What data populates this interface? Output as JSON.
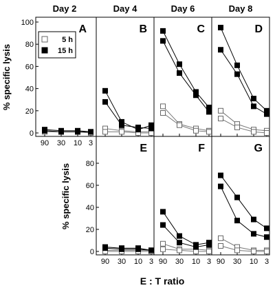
{
  "chart_data": {
    "type": "line",
    "panel_layout": "grid",
    "column_titles": [
      "Day 2",
      "Day 4",
      "Day 6",
      "Day 8"
    ],
    "x_tick_labels": [
      "90",
      "30",
      "10",
      "3"
    ],
    "xlabel": "E : T ratio",
    "ylabel": "% specific lysis",
    "ylim": [
      0,
      100
    ],
    "ylim_bottom_row": [
      0,
      100
    ],
    "y_ticks": [
      0,
      20,
      40,
      60,
      80,
      100
    ],
    "y_ticks_bottom_row": [
      0,
      20,
      40,
      60,
      80
    ],
    "legend": {
      "placement": "top-left of panel A",
      "entries": [
        {
          "label": "5 h",
          "marker": "open-square"
        },
        {
          "label": "15 h",
          "marker": "filled-square"
        }
      ]
    },
    "panels": [
      {
        "letter": "A",
        "day": "Day 2",
        "row": 1,
        "col": 1,
        "series": [
          {
            "name": "5 h",
            "marker": "open-square",
            "curves": [
              [
                1,
                1,
                1,
                0
              ],
              [
                2,
                1,
                1,
                0
              ]
            ]
          },
          {
            "name": "15 h",
            "marker": "filled-square",
            "curves": [
              [
                3,
                2,
                2,
                1
              ],
              [
                2,
                1,
                1,
                1
              ]
            ]
          }
        ]
      },
      {
        "letter": "B",
        "day": "Day 4",
        "row": 1,
        "col": 2,
        "series": [
          {
            "name": "5 h",
            "marker": "open-square",
            "curves": [
              [
                4,
                2,
                1,
                1
              ],
              [
                1,
                1,
                0,
                0
              ]
            ]
          },
          {
            "name": "15 h",
            "marker": "filled-square",
            "curves": [
              [
                38,
                10,
                3,
                7
              ],
              [
                28,
                7,
                5,
                4
              ]
            ]
          }
        ]
      },
      {
        "letter": "C",
        "day": "Day 6",
        "row": 1,
        "col": 3,
        "series": [
          {
            "name": "5 h",
            "marker": "open-square",
            "curves": [
              [
                24,
                8,
                4,
                2
              ],
              [
                18,
                7,
                2,
                1
              ]
            ]
          },
          {
            "name": "15 h",
            "marker": "filled-square",
            "curves": [
              [
                92,
                62,
                37,
                23
              ],
              [
                83,
                54,
                34,
                19
              ]
            ]
          }
        ]
      },
      {
        "letter": "D",
        "day": "Day 8",
        "row": 1,
        "col": 4,
        "series": [
          {
            "name": "5 h",
            "marker": "open-square",
            "curves": [
              [
                20,
                8,
                3,
                2
              ],
              [
                13,
                5,
                1,
                0
              ]
            ]
          },
          {
            "name": "15 h",
            "marker": "filled-square",
            "curves": [
              [
                95,
                61,
                31,
                20
              ],
              [
                75,
                53,
                24,
                17
              ]
            ]
          }
        ]
      },
      {
        "letter": "E",
        "day": "Day 4",
        "row": 2,
        "col": 2,
        "series": [
          {
            "name": "5 h",
            "marker": "open-square",
            "curves": [
              [
                1,
                1,
                1,
                1
              ],
              [
                0,
                0,
                0,
                0
              ]
            ]
          },
          {
            "name": "15 h",
            "marker": "filled-square",
            "curves": [
              [
                4,
                3,
                3,
                1
              ],
              [
                3,
                2,
                2,
                1
              ]
            ]
          }
        ]
      },
      {
        "letter": "F",
        "day": "Day 6",
        "row": 2,
        "col": 3,
        "series": [
          {
            "name": "5 h",
            "marker": "open-square",
            "curves": [
              [
                7,
                2,
                2,
                1
              ],
              [
                2,
                1,
                0,
                0
              ]
            ]
          },
          {
            "name": "15 h",
            "marker": "filled-square",
            "curves": [
              [
                36,
                14,
                6,
                8
              ],
              [
                24,
                8,
                4,
                6
              ]
            ]
          }
        ]
      },
      {
        "letter": "G",
        "day": "Day 8",
        "row": 2,
        "col": 4,
        "series": [
          {
            "name": "5 h",
            "marker": "open-square",
            "curves": [
              [
                12,
                4,
                1,
                1
              ],
              [
                5,
                1,
                0,
                0
              ]
            ]
          },
          {
            "name": "15 h",
            "marker": "filled-square",
            "curves": [
              [
                69,
                49,
                29,
                21
              ],
              [
                59,
                28,
                16,
                13
              ]
            ]
          }
        ]
      }
    ]
  }
}
